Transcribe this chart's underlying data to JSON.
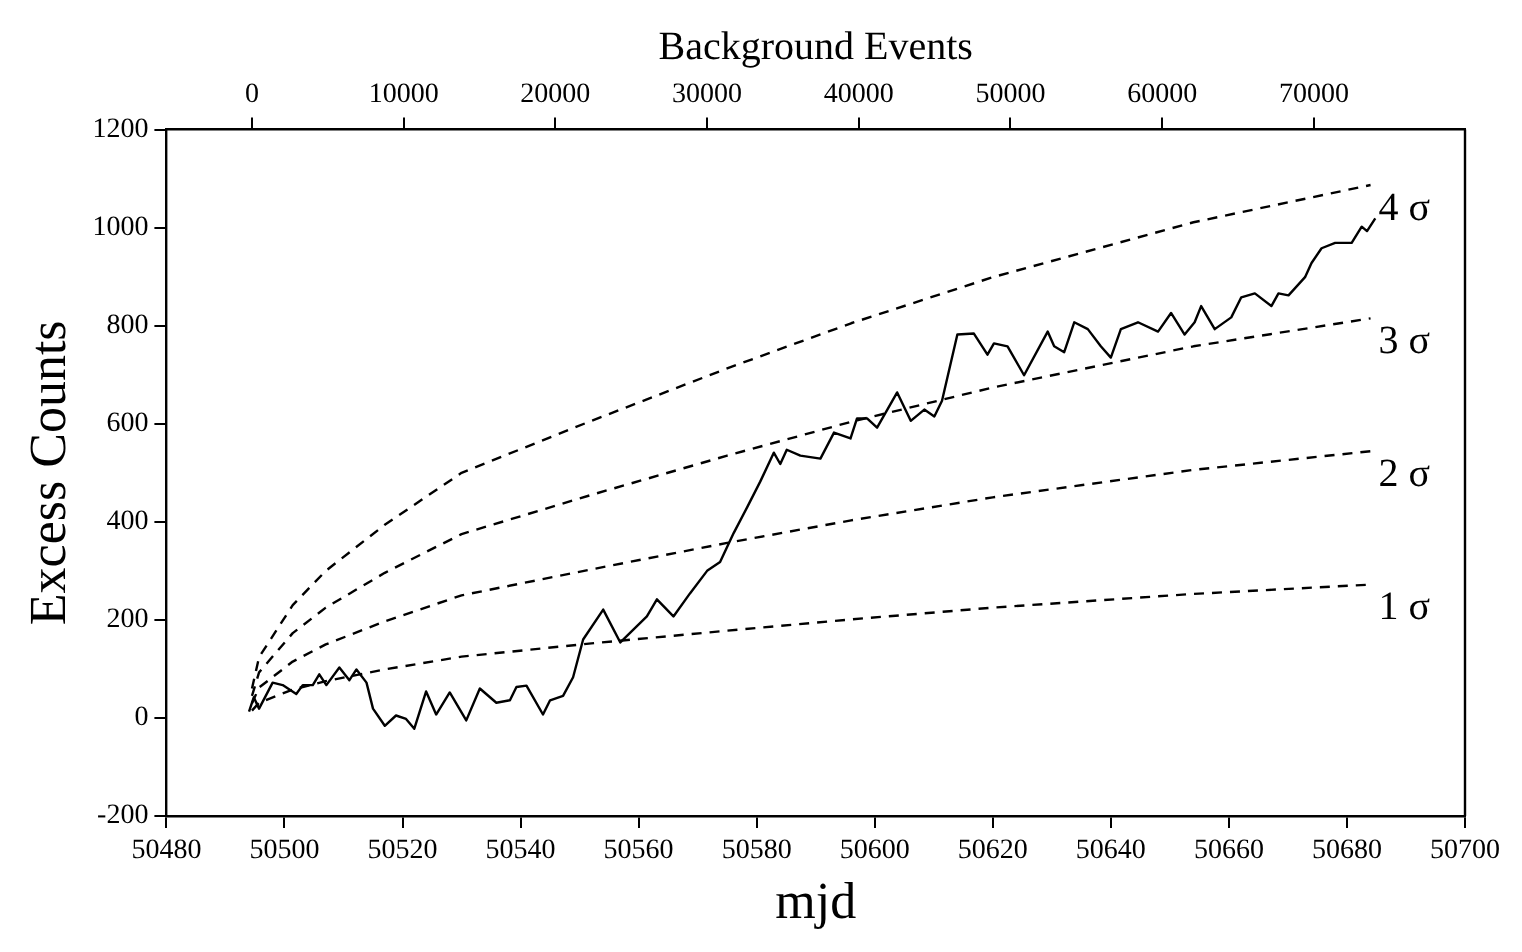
{
  "chart_data": {
    "type": "line",
    "xlabel": "mjd",
    "ylabel": "Excess Counts",
    "x2label": "Background Events",
    "xlim": [
      50480,
      50700
    ],
    "xticks": [
      50480,
      50500,
      50520,
      50540,
      50560,
      50580,
      50600,
      50620,
      50640,
      50660,
      50680,
      50700
    ],
    "ylim": [
      -200,
      1200
    ],
    "yticks": [
      -200,
      0,
      200,
      400,
      600,
      800,
      1000,
      1200
    ],
    "x2lim": [
      -5640,
      79960
    ],
    "x2ticks": [
      0,
      10000,
      20000,
      30000,
      40000,
      50000,
      60000,
      70000
    ],
    "grid": false,
    "legend": false,
    "marker": "none",
    "series": [
      {
        "color": "#000000",
        "line_style": "solid",
        "x": [
          50494.0,
          50494.8,
          50495.7,
          50498,
          50499.7,
          50502,
          50503.1,
          50504.8,
          50505.9,
          50507.1,
          50509.3,
          50511,
          50512.2,
          50513.9,
          50515,
          50517,
          50518.9,
          50520.6,
          50522,
          50524,
          50525.7,
          50528,
          50530.8,
          50533.1,
          50535.9,
          50538.2,
          50539.3,
          50541,
          50543.8,
          50545,
          50547.2,
          50548.9,
          50550.6,
          50554,
          50556.9,
          50561.4,
          50563.1,
          50565.9,
          50568.7,
          50571.6,
          50573.8,
          50576.1,
          50578.4,
          50580.6,
          50582.9,
          50584,
          50585.1,
          50587.4,
          50590.8,
          50593.1,
          50595.9,
          50597,
          50598.7,
          50600.4,
          50603.8,
          50606.1,
          50608.4,
          50610.1,
          50611.4,
          50614,
          50616.8,
          50619.1,
          50620.2,
          50622.5,
          50625.3,
          50629.3,
          50630.4,
          50632.1,
          50633.8,
          50636.1,
          50638.3,
          50640,
          50641.7,
          50644.6,
          50648,
          50650.2,
          50652.5,
          50654.2,
          50655.3,
          50657.6,
          50660.4,
          50662.1,
          50664.4,
          50667.2,
          50668.4,
          50670.1,
          50672.9,
          50674,
          50675.7,
          50678,
          50680.8,
          50682.5,
          50683.4,
          50684.8
        ],
        "values": [
          13,
          42,
          19,
          72,
          67,
          49,
          67,
          67,
          89,
          67,
          103,
          77,
          99,
          72,
          19,
          -16,
          5,
          -2,
          -22,
          54,
          7,
          52,
          -5,
          60,
          31,
          36,
          63,
          66,
          7,
          36,
          45,
          83,
          160,
          221,
          154,
          207,
          242,
          207,
          254,
          300,
          318,
          377,
          430,
          482,
          541,
          518,
          547,
          535,
          529,
          582,
          570,
          611,
          611,
          592,
          664,
          606,
          629,
          615,
          647,
          782,
          784,
          741,
          764,
          758,
          699,
          788,
          758,
          746,
          807,
          793,
          758,
          735,
          793,
          807,
          788,
          826,
          782,
          807,
          840,
          793,
          817,
          858,
          866,
          840,
          866,
          862,
          899,
          928,
          958,
          969,
          969,
          1002,
          993,
          1019
        ]
      },
      {
        "name": "4 σ",
        "color": "#000000",
        "line_style": "dashed",
        "x": [
          50494.5,
          50495.7,
          50501.4,
          50507,
          50517,
          50530,
          50552,
          50575,
          50596,
          50620,
          50654,
          50684
        ],
        "values": [
          60,
          124,
          230,
          300,
          394,
          500,
          606,
          713,
          805,
          899,
          1011,
          1087
        ]
      },
      {
        "name": "3 σ",
        "color": "#000000",
        "line_style": "dashed",
        "x": [
          50494.5,
          50495.7,
          50501.4,
          50507,
          50517,
          50530,
          50552,
          50575,
          50596,
          50620,
          50654,
          50684
        ],
        "values": [
          45,
          93,
          173,
          225,
          296,
          375,
          455,
          535,
          604,
          674,
          758,
          815
        ]
      },
      {
        "name": "2 σ",
        "color": "#000000",
        "line_style": "dashed",
        "x": [
          50494.5,
          50495.7,
          50501.4,
          50507,
          50517,
          50530,
          50552,
          50575,
          50596,
          50620,
          50654,
          50684
        ],
        "values": [
          30,
          62,
          115,
          150,
          197,
          250,
          303,
          357,
          403,
          450,
          506,
          544
        ]
      },
      {
        "name": "1 σ",
        "color": "#000000",
        "line_style": "dashed",
        "x": [
          50494.5,
          50495.7,
          50501.4,
          50507,
          50517,
          50530,
          50552,
          50575,
          50596,
          50620,
          50654,
          50684
        ],
        "values": [
          15,
          31,
          58,
          75,
          99,
          125,
          152,
          178,
          201,
          225,
          253,
          272
        ]
      }
    ]
  }
}
